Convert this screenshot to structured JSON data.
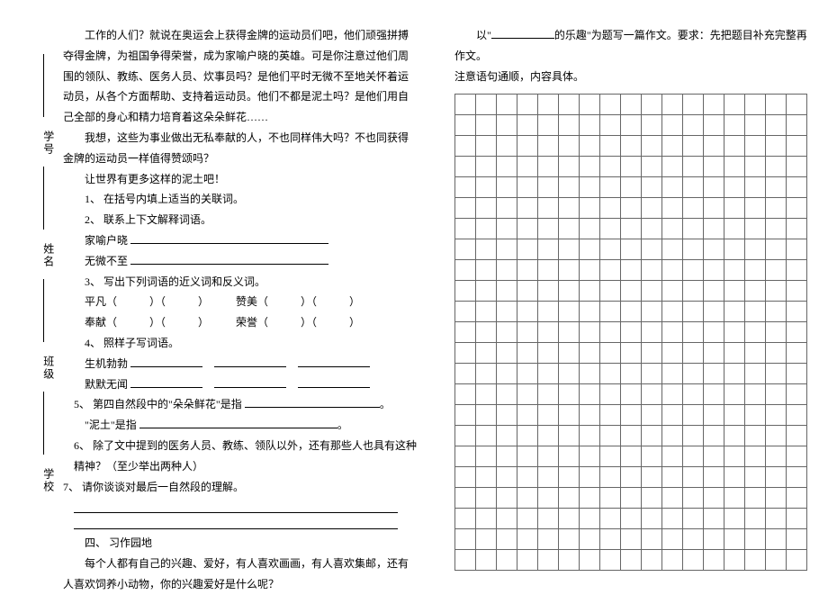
{
  "side": {
    "xuehao": "学号",
    "xingming": "姓名",
    "banji": "班级",
    "xuexiao": "学校"
  },
  "left": {
    "p1": "工作的人们？就说在奥运会上获得金牌的运动员们吧，他们顽强拼搏夺得金牌，为祖国争得荣誉，成为家喻户晓的英雄。可是你注意过他们周围的领队、教练、医务人员、炊事员吗？是他们平时无微不至地关怀着运动员，从各个方面帮助、支持着运动员。他们不都是泥土吗？是他们用自己全部的身心和精力培育着这朵朵鲜花……",
    "p2": "我想，这些为事业做出无私奉献的人，不也同样伟大吗？不也同获得金牌的运动员一样值得赞颂吗？",
    "p3": "让世界有更多这样的泥土吧！",
    "q1": "1、 在括号内填上适当的关联词。",
    "q2": "2、 联系上下文解释词语。",
    "q2a": "家喻户晓",
    "q2b": "无微不至",
    "q3": "3、 写出下列词语的近义词和反义词。",
    "q3a": "平凡（　　　）（　　　）　　　赞美（　　　）（　　　）",
    "q3b": "奉献（　　　）（　　　）　　　荣誉（　　　）（　　　）",
    "q4": "4、 照样子写词语。",
    "q4a": "生机勃勃",
    "q4b": "默默无闻",
    "q5a": "5、 第四自然段中的\"朵朵鲜花\"是指",
    "q5b": "\"泥土\"是指",
    "q6": "6、 除了文中提到的医务人员、教练、领队以外，还有那些人也具有这种精神？（至少举出两种人）",
    "q7": "7、 请你谈谈对最后一自然段的理解。",
    "sec4": "四、 习作园地",
    "sec4p": "每个人都有自己的兴趣、爱好，有人喜欢画画，有人喜欢集邮，还有人喜欢饲养小动物，你的兴趣爱好是什么呢？"
  },
  "right": {
    "p1a": "以\"",
    "p1b": "的乐趣\"为题写一篇作文。要求：先把题目补充完整再作文。",
    "p2": "注意语句通顺，内容具体。"
  },
  "grid": {
    "rows": 23,
    "cols": 17
  }
}
